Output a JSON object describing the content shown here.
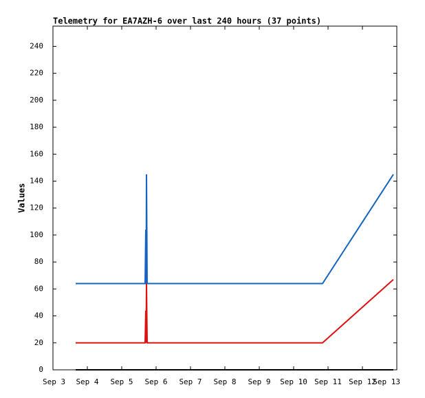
{
  "chart_data": {
    "type": "line",
    "title": "Telemetry for EA7AZH-6 over last 240 hours (37 points)",
    "y_label": "Values",
    "xlim": [
      3,
      13
    ],
    "xticks": [
      {
        "value": 3,
        "label": "Sep 3"
      },
      {
        "value": 4,
        "label": "Sep 4"
      },
      {
        "value": 5,
        "label": "Sep 5"
      },
      {
        "value": 6,
        "label": "Sep 6"
      },
      {
        "value": 7,
        "label": "Sep 7"
      },
      {
        "value": 8,
        "label": "Sep 8"
      },
      {
        "value": 9,
        "label": "Sep 9"
      },
      {
        "value": 10,
        "label": "Sep 10"
      },
      {
        "value": 11,
        "label": "Sep 11"
      },
      {
        "value": 12,
        "label": "Sep 12"
      },
      {
        "value": 13,
        "label": "Sep 13"
      }
    ],
    "ylim": [
      0,
      255
    ],
    "yticks": [
      0,
      20,
      40,
      60,
      80,
      100,
      120,
      140,
      160,
      180,
      200,
      220,
      240
    ],
    "series": [
      {
        "color": "#1565c0",
        "x": [
          3.66,
          5.68,
          5.7,
          5.71,
          5.72,
          5.74,
          10.84,
          12.9
        ],
        "values": [
          64,
          64,
          104,
          64,
          145,
          64,
          64,
          145
        ]
      },
      {
        "color": "#e01010",
        "x": [
          3.66,
          5.68,
          5.7,
          5.71,
          5.72,
          5.74,
          10.84,
          12.9
        ],
        "values": [
          20,
          20,
          44,
          20,
          64,
          20,
          20,
          67
        ]
      },
      {
        "color": "#000000",
        "x": [
          3.66,
          12.9
        ],
        "values": [
          0,
          0
        ]
      }
    ]
  }
}
